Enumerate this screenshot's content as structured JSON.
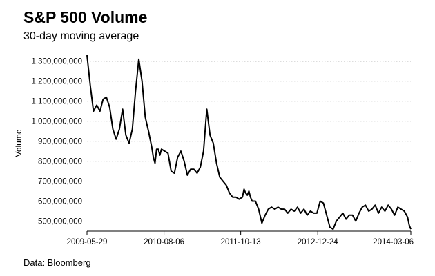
{
  "chart_data": {
    "type": "line",
    "title": "S&P 500 Volume",
    "subtitle": "30-day moving average",
    "source": "Data: Bloomberg",
    "xlabel": "",
    "ylabel": "Volume",
    "ylim": [
      450000000,
      1330000000
    ],
    "yticks": [
      500000000,
      600000000,
      700000000,
      800000000,
      900000000,
      1000000000,
      1100000000,
      1200000000,
      1300000000
    ],
    "ytick_labels": [
      "500,000,000",
      "600,000,000",
      "700,000,000",
      "800,000,000",
      "900,000,000",
      "1,000,000,000",
      "1,100,000,000",
      "1,200,000,000",
      "1,300,000,000"
    ],
    "xticks": [
      0,
      0.2379,
      0.4747,
      0.7126,
      1
    ],
    "xtick_labels": [
      "2009-05-29",
      "2010-08-06",
      "2011-10-13",
      "2012-12-24",
      "2014-03-06"
    ],
    "grid": true,
    "series": [
      {
        "name": "30-day moving average",
        "color": "#000000",
        "x": [
          0,
          0.01,
          0.02,
          0.03,
          0.04,
          0.05,
          0.06,
          0.07,
          0.08,
          0.09,
          0.1,
          0.11,
          0.12,
          0.13,
          0.14,
          0.15,
          0.16,
          0.17,
          0.18,
          0.19,
          0.2,
          0.205,
          0.21,
          0.215,
          0.22,
          0.225,
          0.23,
          0.24,
          0.25,
          0.26,
          0.27,
          0.28,
          0.29,
          0.3,
          0.31,
          0.32,
          0.33,
          0.34,
          0.35,
          0.36,
          0.37,
          0.38,
          0.39,
          0.4,
          0.41,
          0.42,
          0.43,
          0.44,
          0.45,
          0.46,
          0.47,
          0.48,
          0.485,
          0.49,
          0.495,
          0.5,
          0.505,
          0.51,
          0.52,
          0.53,
          0.54,
          0.55,
          0.56,
          0.57,
          0.58,
          0.59,
          0.6,
          0.61,
          0.62,
          0.63,
          0.64,
          0.65,
          0.66,
          0.67,
          0.68,
          0.69,
          0.7,
          0.71,
          0.72,
          0.73,
          0.74,
          0.75,
          0.76,
          0.77,
          0.78,
          0.79,
          0.8,
          0.81,
          0.82,
          0.83,
          0.84,
          0.85,
          0.86,
          0.87,
          0.88,
          0.89,
          0.9,
          0.91,
          0.92,
          0.93,
          0.94,
          0.95,
          0.96,
          0.97,
          0.98,
          0.99,
          0.995,
          1
        ],
        "values": [
          1330000000,
          1180000000,
          1050000000,
          1080000000,
          1050000000,
          1110000000,
          1120000000,
          1070000000,
          960000000,
          910000000,
          960000000,
          1060000000,
          930000000,
          890000000,
          960000000,
          1150000000,
          1310000000,
          1200000000,
          1020000000,
          950000000,
          870000000,
          820000000,
          790000000,
          860000000,
          860000000,
          830000000,
          860000000,
          850000000,
          840000000,
          750000000,
          740000000,
          820000000,
          850000000,
          800000000,
          730000000,
          760000000,
          760000000,
          740000000,
          770000000,
          850000000,
          1060000000,
          930000000,
          890000000,
          790000000,
          720000000,
          700000000,
          680000000,
          640000000,
          620000000,
          620000000,
          610000000,
          620000000,
          660000000,
          640000000,
          630000000,
          650000000,
          620000000,
          600000000,
          600000000,
          560000000,
          490000000,
          530000000,
          560000000,
          570000000,
          560000000,
          570000000,
          560000000,
          560000000,
          540000000,
          560000000,
          550000000,
          570000000,
          540000000,
          560000000,
          530000000,
          550000000,
          540000000,
          540000000,
          600000000,
          590000000,
          530000000,
          470000000,
          460000000,
          500000000,
          520000000,
          540000000,
          510000000,
          530000000,
          530000000,
          500000000,
          540000000,
          570000000,
          580000000,
          550000000,
          560000000,
          580000000,
          540000000,
          570000000,
          550000000,
          580000000,
          560000000,
          530000000,
          570000000,
          560000000,
          550000000,
          520000000,
          480000000,
          460000000
        ]
      }
    ]
  }
}
